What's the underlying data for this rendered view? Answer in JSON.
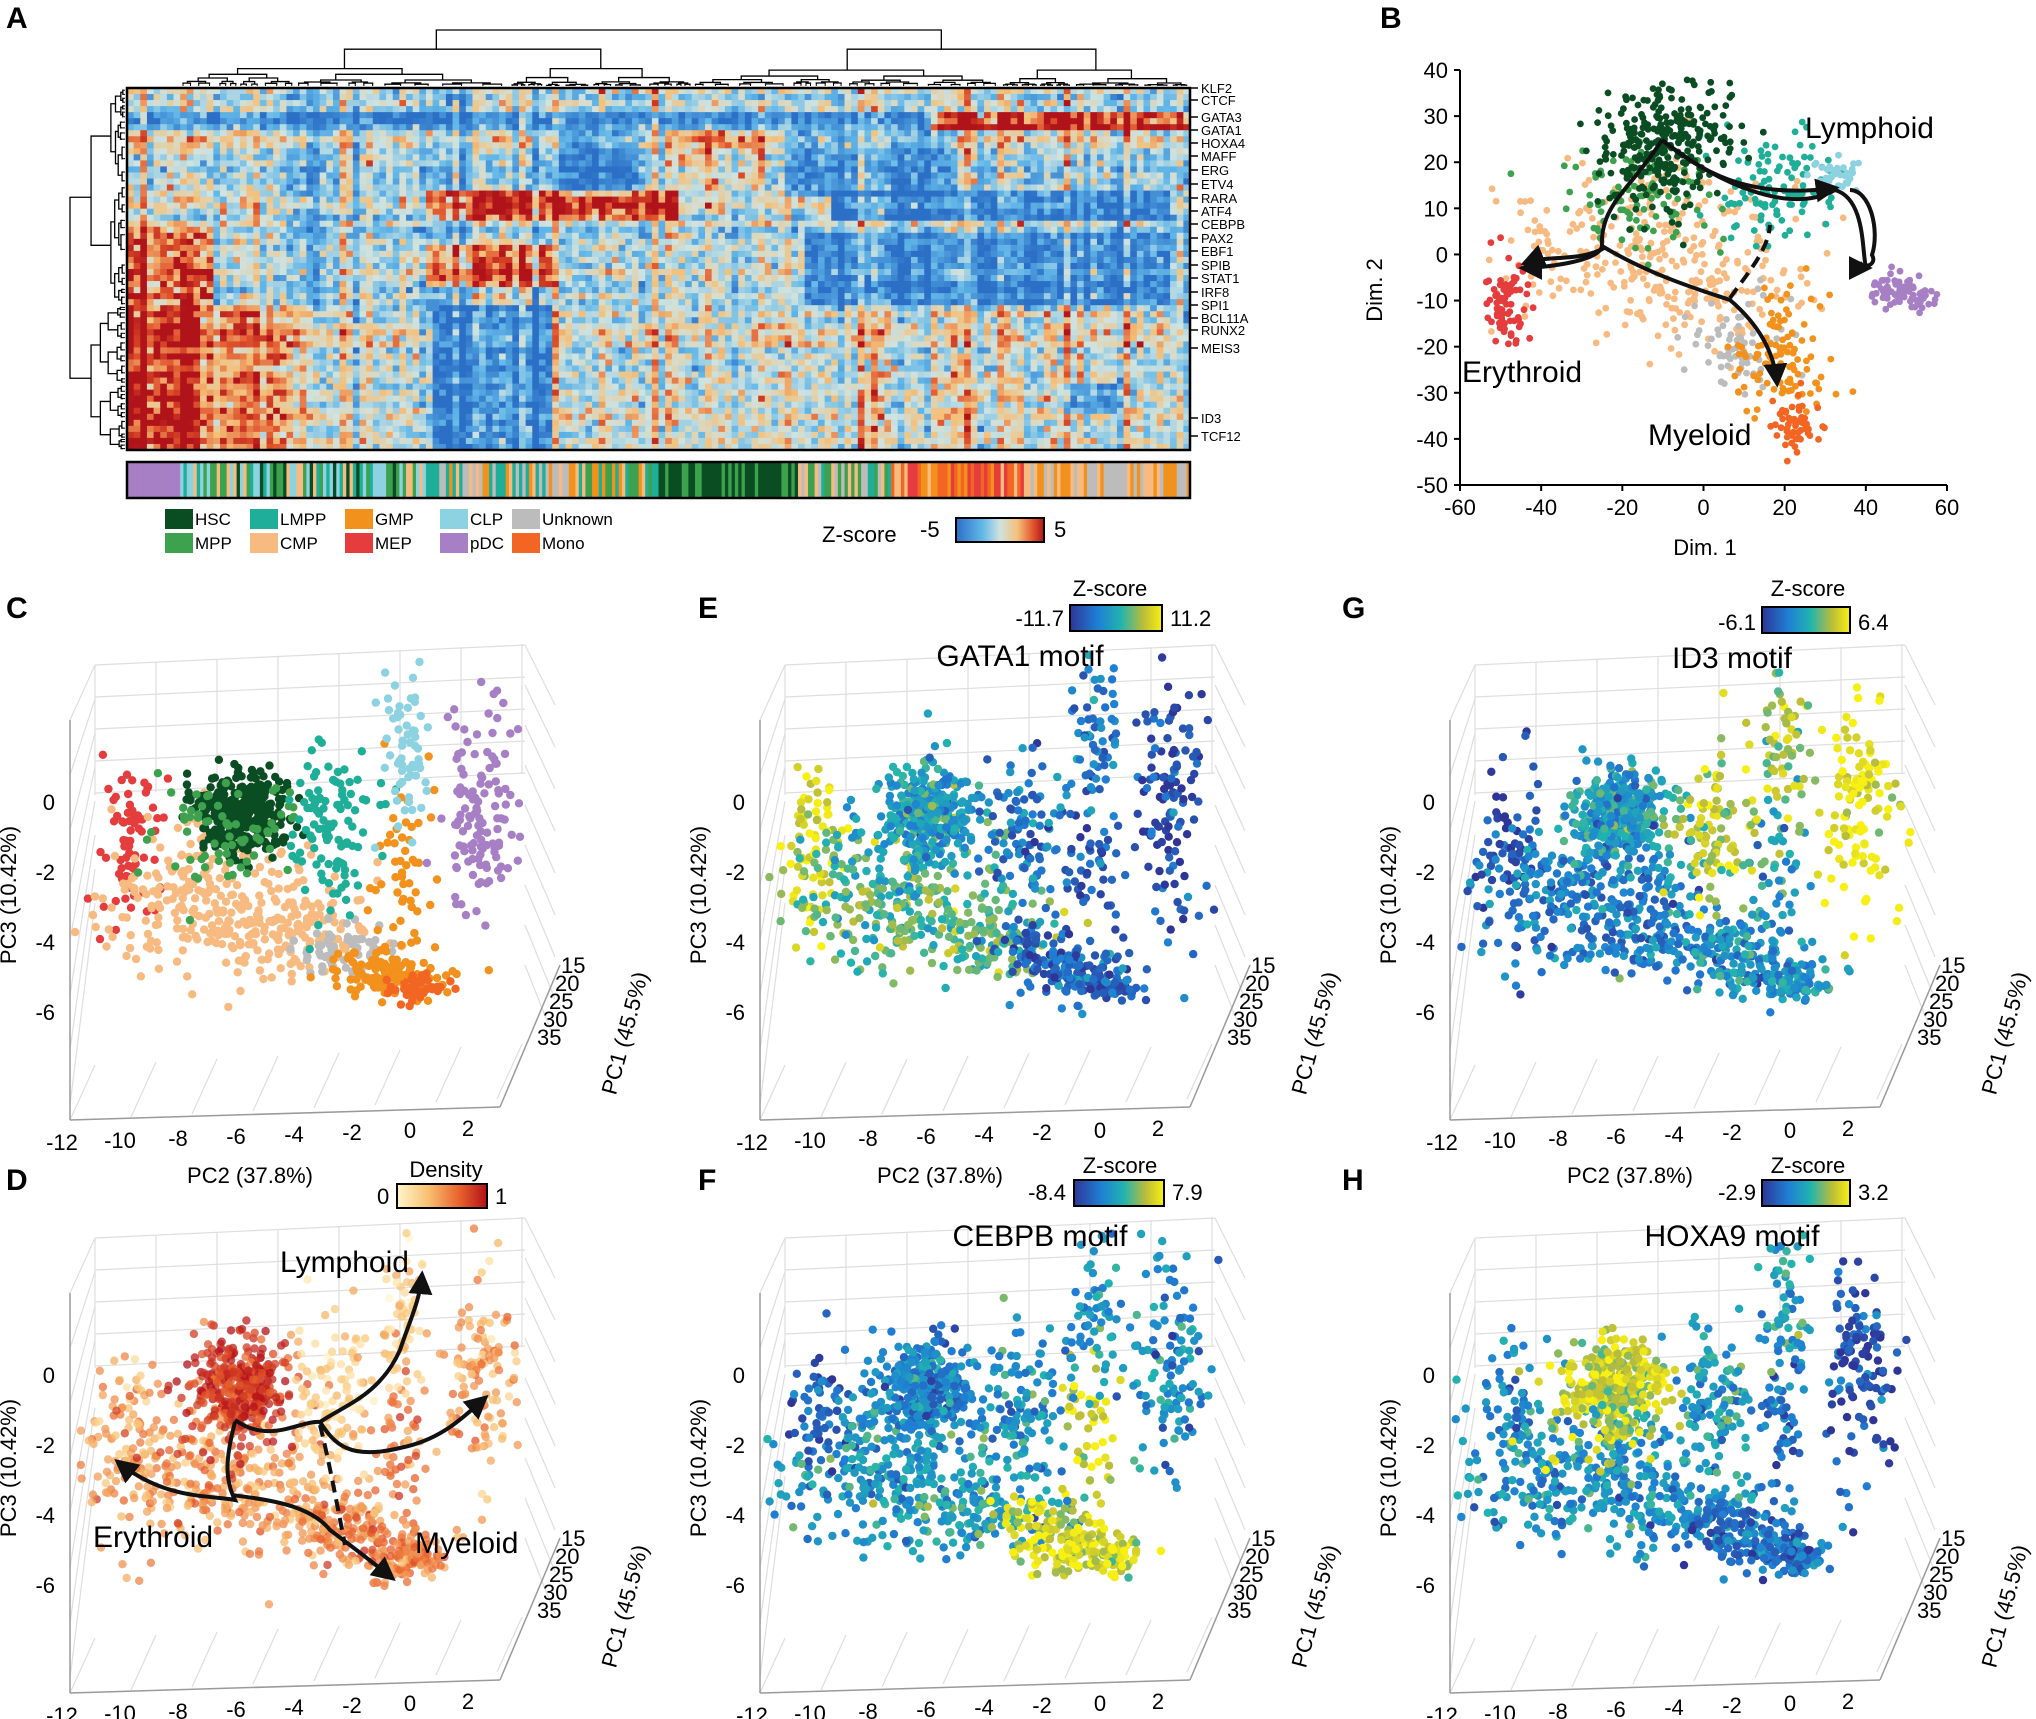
{
  "panel_letters": [
    "A",
    "B",
    "C",
    "D",
    "E",
    "F",
    "G",
    "H"
  ],
  "heatmap": {
    "genes": [
      "KLF2",
      "CTCF",
      "GATA3",
      "GATA1",
      "HOXA4",
      "MAFF",
      "ERG",
      "ETV4",
      "RARA",
      "ATF4",
      "CEBPB",
      "PAX2",
      "EBF1",
      "SPIB",
      "STAT1",
      "IRF8",
      "SPI1",
      "BCL11A",
      "RUNX2",
      "MEIS3",
      "ID3",
      "TCF12"
    ],
    "zscore_label": "Z-score",
    "zscore_min": "-5",
    "zscore_max": "5"
  },
  "legend_celltypes": [
    {
      "label": "HSC",
      "color": "#0b4d23"
    },
    {
      "label": "MPP",
      "color": "#3ea14e"
    },
    {
      "label": "LMPP",
      "color": "#1fae97"
    },
    {
      "label": "CMP",
      "color": "#f7bb82"
    },
    {
      "label": "GMP",
      "color": "#f2911b"
    },
    {
      "label": "MEP",
      "color": "#e53c3d"
    },
    {
      "label": "CLP",
      "color": "#8dd2e0"
    },
    {
      "label": "pDC",
      "color": "#a77fc4"
    },
    {
      "label": "Unknown",
      "color": "#bcbcbc"
    },
    {
      "label": "Mono",
      "color": "#f26522"
    }
  ],
  "panel_b": {
    "xlabel": "Dim. 1",
    "ylabel": "Dim. 2",
    "xticks": [
      "-60",
      "-40",
      "-20",
      "0",
      "20",
      "40",
      "60"
    ],
    "yticks": [
      "40",
      "30",
      "20",
      "10",
      "0",
      "-10",
      "-20",
      "-30",
      "-40",
      "-50"
    ],
    "annotations": [
      "Lymphoid",
      "Erythroid",
      "Myeloid"
    ]
  },
  "pca_axes": {
    "xlabel": "PC2 (37.8%)",
    "ylabel": "PC3 (10.42%)",
    "zlabel": "PC1 (45.5%)",
    "xticks": [
      "-12",
      "-10",
      "-8",
      "-6",
      "-4",
      "-2",
      "0",
      "2"
    ],
    "yticks": [
      "0",
      "-2",
      "-4",
      "-6"
    ],
    "zticks": [
      "15",
      "20",
      "25",
      "30",
      "35"
    ]
  },
  "panel_d": {
    "legend_title": "Density",
    "legend_min": "0",
    "legend_max": "1",
    "annotations": [
      "Lymphoid",
      "Erythroid",
      "Myeloid"
    ]
  },
  "motif_panels": {
    "E": {
      "title": "GATA1 motif",
      "cb_label": "Z-score",
      "min": "-11.7",
      "max": "11.2"
    },
    "F": {
      "title": "CEBPB motif",
      "cb_label": "Z-score",
      "min": "-8.4",
      "max": "7.9"
    },
    "G": {
      "title": "ID3 motif",
      "cb_label": "Z-score",
      "min": "-6.1",
      "max": "6.4"
    },
    "H": {
      "title": "HOXA9 motif",
      "cb_label": "Z-score",
      "min": "-2.9",
      "max": "3.2"
    }
  }
}
